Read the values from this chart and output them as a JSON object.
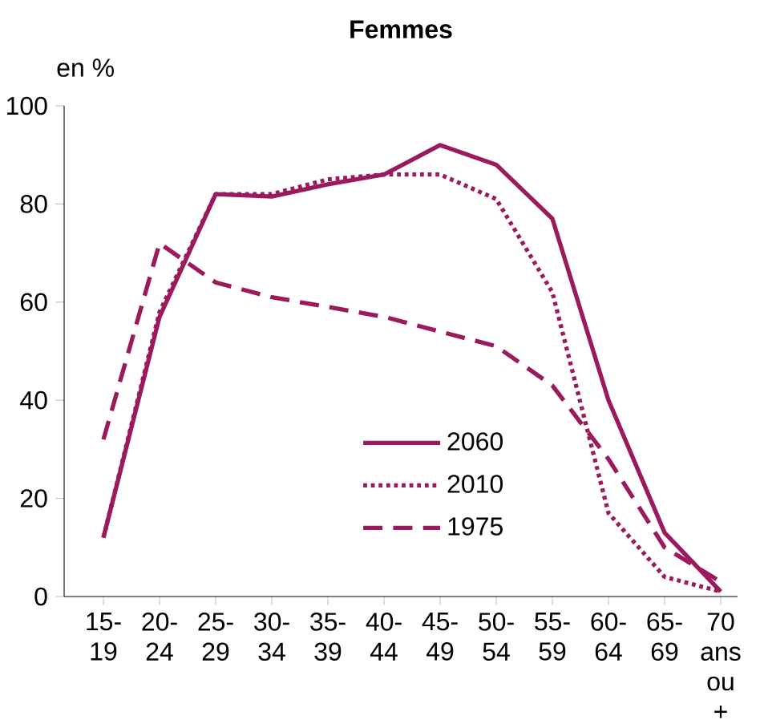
{
  "chart_data": {
    "type": "line",
    "title": "Femmes",
    "ylabel": "en %",
    "categories": [
      "15- 19",
      "20- 24",
      "25- 29",
      "30- 34",
      "35- 39",
      "40- 44",
      "45- 49",
      "50- 54",
      "55- 59",
      "60- 64",
      "65- 69",
      "70 ans ou +"
    ],
    "series": [
      {
        "name": "2060",
        "color": "#9b1a5e",
        "line_style": "solid",
        "values": [
          12,
          57,
          82,
          81.5,
          84,
          86,
          92,
          88,
          77,
          40,
          13,
          1
        ]
      },
      {
        "name": "2010",
        "color": "#9b1a5e",
        "line_style": "dotted",
        "values": [
          12,
          58,
          82,
          82,
          85,
          86,
          86,
          81,
          62,
          17,
          4,
          1
        ]
      },
      {
        "name": "1975",
        "color": "#9b1a5e",
        "line_style": "dashed",
        "values": [
          32,
          72,
          64,
          61,
          59,
          57,
          54,
          51,
          43,
          28,
          10,
          3
        ]
      }
    ],
    "ylim": [
      0,
      100
    ],
    "yticks": [
      0,
      20,
      40,
      60,
      80,
      100
    ],
    "grid": false,
    "legend": "bottom",
    "marker": "none"
  }
}
